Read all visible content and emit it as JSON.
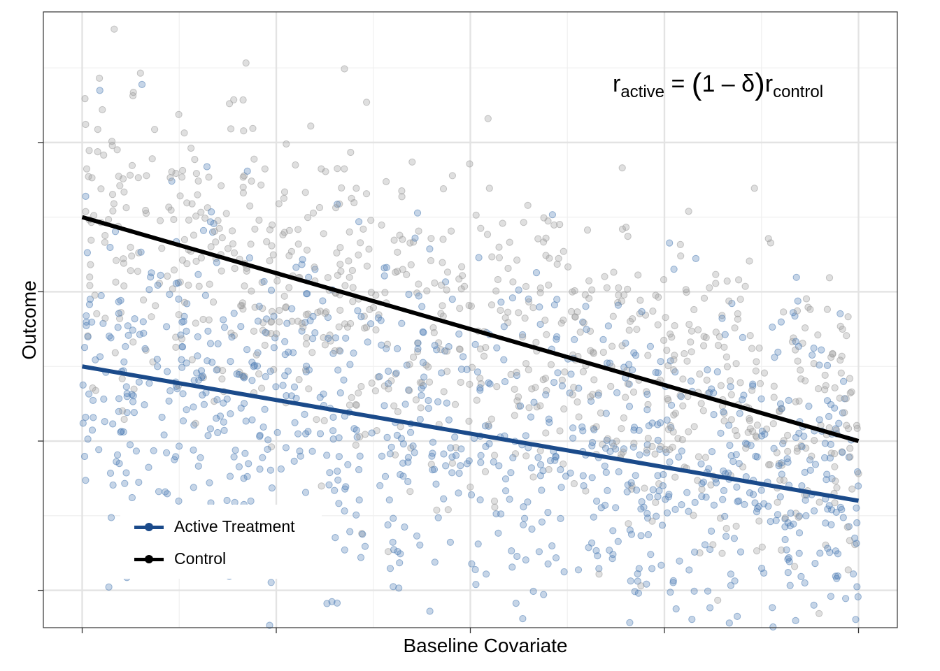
{
  "chart_data": {
    "type": "scatter",
    "title": "",
    "xlabel": "Baseline Covariate",
    "ylabel": "Outcome",
    "xlim": [
      -0.1,
      2.1
    ],
    "ylim": [
      -0.5,
      7.75
    ],
    "x_ticks": [
      0,
      0.5,
      1,
      1.5,
      2
    ],
    "y_ticks": [
      0,
      2,
      4,
      6
    ],
    "tick_labels_shown": false,
    "grid": true,
    "legend_position": "bottom-left",
    "annotation": {
      "r": "r",
      "sub_active": "active",
      "equals": " = ",
      "open_paren": "(",
      "one_minus_delta": "1 – δ",
      "close_paren": ")",
      "sub_control": "control"
    },
    "series": [
      {
        "name": "Active Treatment",
        "color": "#1a4a8a",
        "point_color": "#4f7db5",
        "trend_line": {
          "x": [
            0,
            2
          ],
          "y": [
            3,
            1.2
          ]
        },
        "scatter": {
          "n_points": 950,
          "y_spread": 1.15
        }
      },
      {
        "name": "Control",
        "color": "#000000",
        "point_color": "#9a9a9a",
        "trend_line": {
          "x": [
            0,
            2
          ],
          "y": [
            5,
            2
          ]
        },
        "scatter": {
          "n_points": 850,
          "y_spread": 1.05
        }
      }
    ]
  }
}
